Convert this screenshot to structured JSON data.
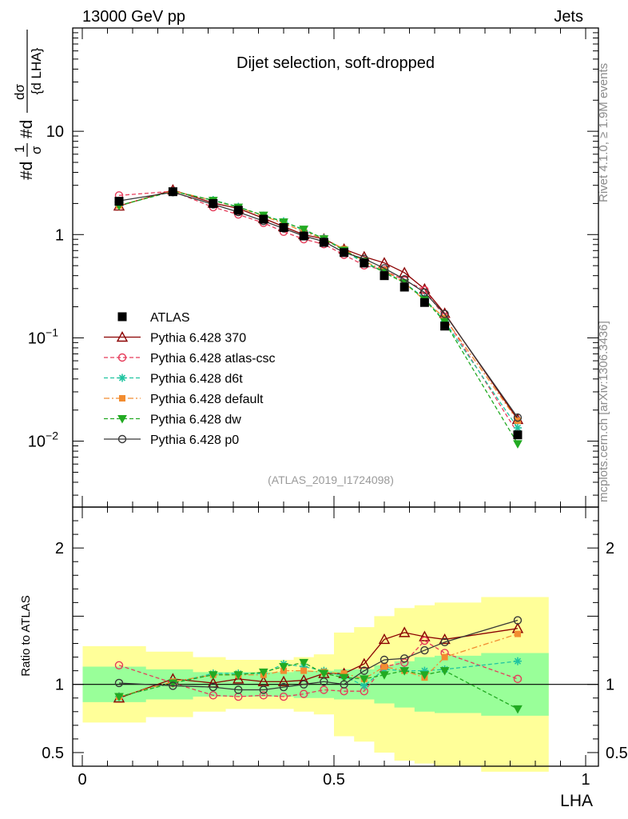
{
  "header": {
    "left": "13000 GeV pp",
    "right": "Jets"
  },
  "chart_data": {
    "type": "line",
    "title": "Dijet selection, soft-dropped",
    "analysis_label": "(ATLAS_2019_I1724098)",
    "side_label_top": "Rivet 4.1.0, ≥ 1.9M events",
    "side_label_bottom": "mcplots.cern.ch [arXiv:1306.3436]",
    "ylabel_main": "#d 1/σ #d dσ/{d LHA}",
    "ylabel_main_parts": {
      "p1": "#d",
      "p1_num": "1",
      "p1_den": "σ",
      "p2": "#d",
      "p2_num": "dσ",
      "p2_den": "{d LHA}"
    },
    "ylabel_ratio": "Ratio to ATLAS",
    "xlabel": "LHA",
    "xlim": [
      0,
      1
    ],
    "ylim_main": [
      0.0023,
      100
    ],
    "ylog": true,
    "ylim_ratio": [
      0.4,
      2.3
    ],
    "x_ticks": [
      {
        "v": 0,
        "label": "0"
      },
      {
        "v": 0.5,
        "label": "0.5"
      },
      {
        "v": 1,
        "label": "1"
      }
    ],
    "y_ticks_main": [
      {
        "v": 10,
        "base": "10",
        "exp": ""
      },
      {
        "v": 1,
        "base": "1",
        "exp": ""
      },
      {
        "v": 0.1,
        "base": "10",
        "exp": "−1"
      },
      {
        "v": 0.01,
        "base": "10",
        "exp": "−2"
      }
    ],
    "y_ticks_ratio": [
      {
        "v": 2,
        "label": "2"
      },
      {
        "v": 1,
        "label": "1"
      },
      {
        "v": 0.5,
        "label": "0.5"
      }
    ],
    "x": [
      0.073,
      0.18,
      0.26,
      0.31,
      0.36,
      0.4,
      0.44,
      0.48,
      0.52,
      0.56,
      0.6,
      0.64,
      0.68,
      0.72,
      0.865
    ],
    "data": {
      "name": "ATLAS",
      "values": [
        2.1,
        2.6,
        2.0,
        1.72,
        1.41,
        1.17,
        0.97,
        0.84,
        0.67,
        0.53,
        0.4,
        0.31,
        0.22,
        0.13,
        0.0115
      ],
      "band_inner": [
        0.13,
        0.11,
        0.09,
        0.09,
        0.09,
        0.09,
        0.1,
        0.1,
        0.11,
        0.11,
        0.14,
        0.17,
        0.2,
        0.21,
        0.23
      ],
      "band_outer": [
        0.28,
        0.24,
        0.2,
        0.18,
        0.18,
        0.18,
        0.2,
        0.22,
        0.38,
        0.42,
        0.5,
        0.56,
        0.58,
        0.6,
        0.64
      ]
    },
    "series": [
      {
        "name": "Pythia 6.428 370",
        "color": "#8b0000",
        "dash": "",
        "marker": "tri-open",
        "ratio": [
          0.9,
          1.04,
          1.01,
          1.04,
          1.02,
          1.02,
          1.03,
          1.08,
          1.08,
          1.15,
          1.33,
          1.38,
          1.35,
          1.33,
          1.41
        ]
      },
      {
        "name": "Pythia 6.428 atlas-csc",
        "color": "#e63c5a",
        "dash": "5,3",
        "marker": "circ-open",
        "ratio": [
          1.14,
          1.01,
          0.92,
          0.91,
          0.92,
          0.91,
          0.93,
          0.96,
          0.95,
          0.95,
          1.13,
          1.16,
          1.32,
          1.23,
          1.04
        ]
      },
      {
        "name": "Pythia 6.428 d6t",
        "color": "#20c4a0",
        "dash": "5,3",
        "marker": "star",
        "ratio": [
          0.91,
          1.01,
          1.08,
          1.08,
          1.08,
          1.15,
          1.13,
          1.1,
          1.06,
          0.99,
          1.11,
          1.1,
          1.1,
          1.11,
          1.17
        ]
      },
      {
        "name": "Pythia 6.428 default",
        "color": "#f28c30",
        "dash": "7,3,2,3",
        "marker": "sq-fill",
        "ratio": [
          0.91,
          1.02,
          1.07,
          1.07,
          1.07,
          1.1,
          1.1,
          1.09,
          1.08,
          1.04,
          1.13,
          1.1,
          1.05,
          1.2,
          1.37
        ]
      },
      {
        "name": "Pythia 6.428 dw",
        "color": "#22aa22",
        "dash": "5,3",
        "marker": "tri-down",
        "ratio": [
          0.91,
          1.01,
          1.07,
          1.07,
          1.09,
          1.13,
          1.16,
          1.08,
          1.05,
          1.04,
          1.07,
          1.1,
          1.07,
          1.1,
          0.82
        ]
      },
      {
        "name": "Pythia 6.428 p0",
        "color": "#383838",
        "dash": "",
        "marker": "circ-open",
        "ratio": [
          1.01,
          0.99,
          0.98,
          0.96,
          0.96,
          0.98,
          1.0,
          1.02,
          1.0,
          1.1,
          1.18,
          1.19,
          1.25,
          1.31,
          1.47
        ]
      }
    ]
  }
}
